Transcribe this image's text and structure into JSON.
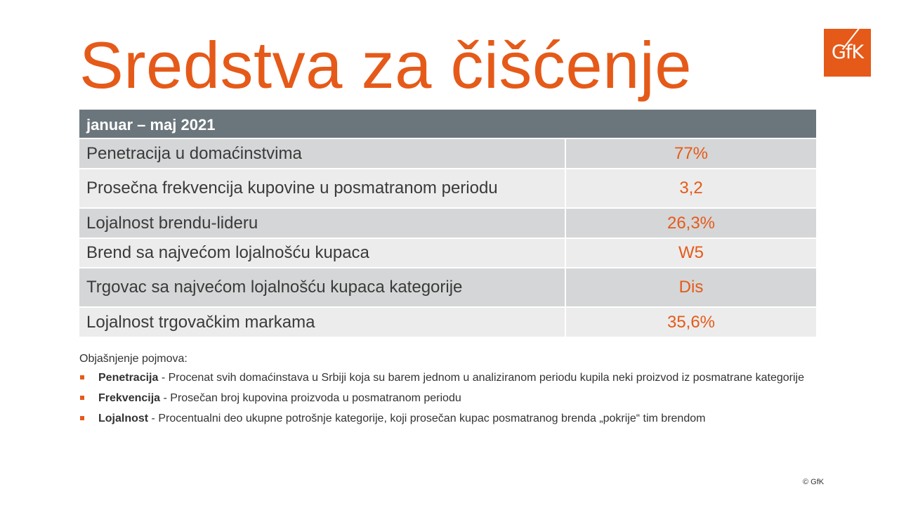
{
  "title": "Sredstva za čišćenje",
  "logo": {
    "text": "GfK",
    "color": "#e55a19"
  },
  "table": {
    "header": "januar – maj 2021",
    "rows": [
      {
        "label": "Penetracija u domaćinstvima",
        "value": "77%"
      },
      {
        "label": "Prosečna frekvencija kupovine u posmatranom periodu",
        "value": "3,2"
      },
      {
        "label": "Lojalnost brendu-lideru",
        "value": "26,3%"
      },
      {
        "label": "Brend sa najvećom lojalnošću kupaca",
        "value": "W5"
      },
      {
        "label": "Trgovac sa najvećom lojalnošću kupaca kategorije",
        "value": "Dis"
      },
      {
        "label": "Lojalnost trgovačkim markama",
        "value": "35,6%"
      }
    ]
  },
  "notes": {
    "heading": "Objašnjenje pojmova:",
    "items": [
      {
        "term": "Penetracija",
        "text": " - Procenat svih domaćinstava u Srbiji koja su barem jednom u analiziranom periodu kupila neki proizvod iz posmatrane kategorije"
      },
      {
        "term": "Frekvencija",
        "text": " - Prosečan broj kupovina proizvoda u posmatranom periodu"
      },
      {
        "term": "Lojalnost",
        "text": " - Procentualni deo ukupne potrošnje kategorije, koji prosečan kupac posmatranog brenda „pokrije“ tim brendom"
      }
    ]
  },
  "copyright": "© GfK",
  "colors": {
    "accent": "#e55a19",
    "header_bg": "#6b767c",
    "row_dark": "#d5d6d7",
    "row_light": "#ececec"
  }
}
